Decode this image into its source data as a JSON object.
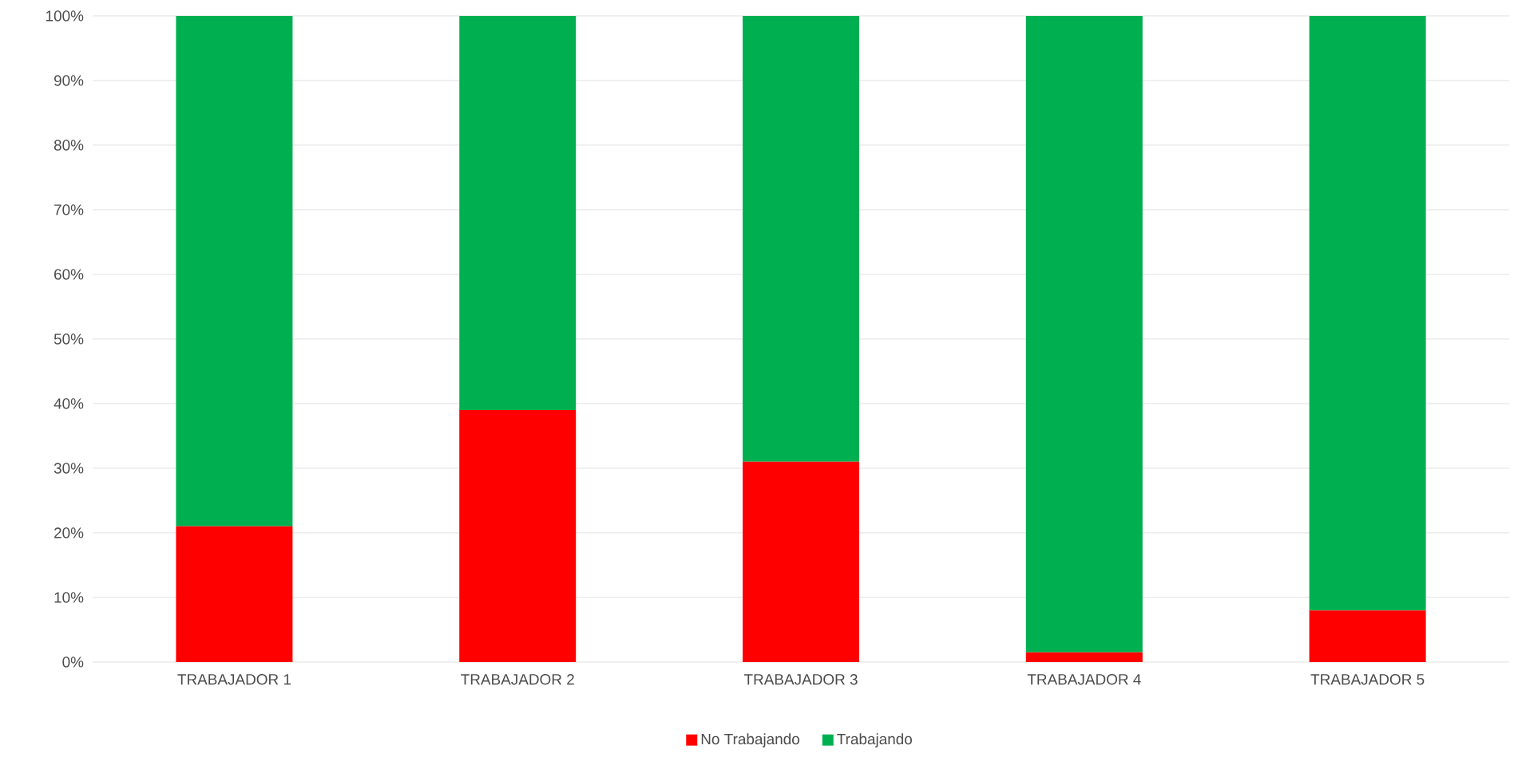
{
  "chart_data": {
    "type": "bar",
    "stacked": true,
    "categories": [
      "TRABAJADOR 1",
      "TRABAJADOR 2",
      "TRABAJADOR 3",
      "TRABAJADOR 4",
      "TRABAJADOR 5"
    ],
    "series": [
      {
        "name": "No Trabajando",
        "color": "#ff0000",
        "values": [
          21,
          39,
          31,
          1.5,
          8
        ]
      },
      {
        "name": "Trabajando",
        "color": "#00b050",
        "values": [
          79,
          61,
          69,
          98.5,
          92
        ]
      }
    ],
    "ylim": [
      0,
      100
    ],
    "yticks": [
      {
        "value": 0,
        "label": "0%"
      },
      {
        "value": 10,
        "label": "10%"
      },
      {
        "value": 20,
        "label": "20%"
      },
      {
        "value": 30,
        "label": "30%"
      },
      {
        "value": 40,
        "label": "40%"
      },
      {
        "value": 50,
        "label": "50%"
      },
      {
        "value": 60,
        "label": "60%"
      },
      {
        "value": 70,
        "label": "70%"
      },
      {
        "value": 80,
        "label": "80%"
      },
      {
        "value": 90,
        "label": "90%"
      },
      {
        "value": 100,
        "label": "100%"
      }
    ],
    "grid": "y",
    "legend": "bottom"
  }
}
